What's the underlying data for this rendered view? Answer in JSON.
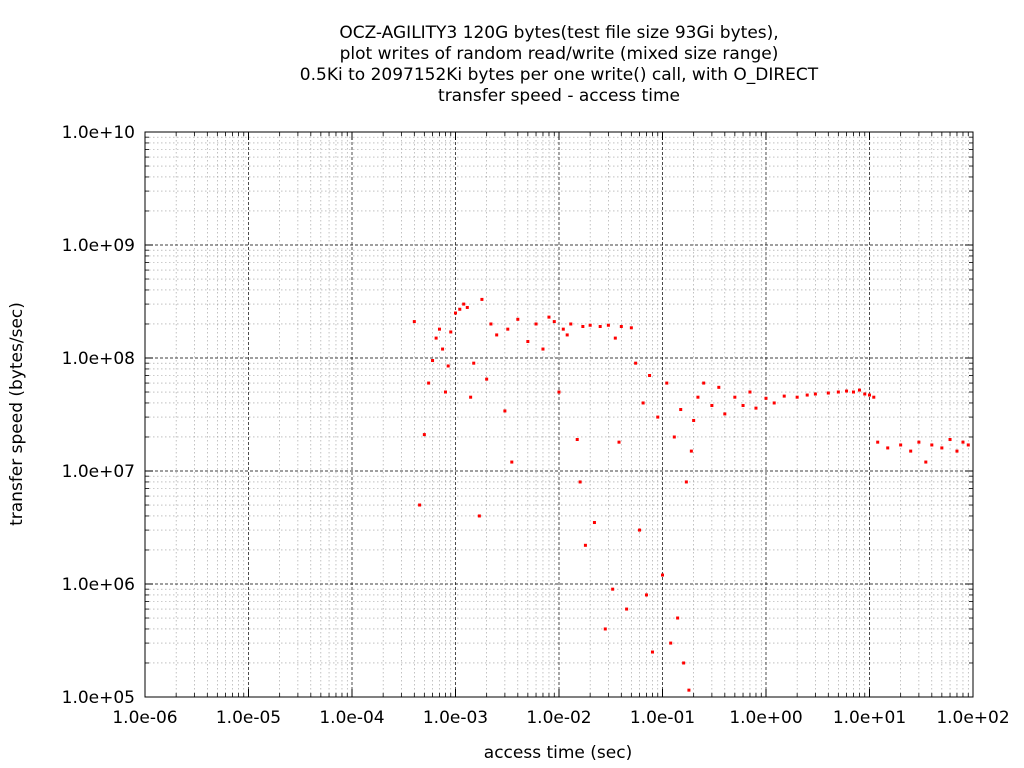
{
  "chart_data": {
    "type": "scatter",
    "title_lines": [
      "OCZ-AGILITY3 120G bytes(test file size 93Gi bytes),",
      "plot writes of random read/write (mixed size range)",
      "0.5Ki to 2097152Ki bytes per one write() call, with O_DIRECT",
      "transfer speed - access time"
    ],
    "xlabel": "access time (sec)",
    "ylabel": "transfer speed (bytes/sec)",
    "x_scale": "log",
    "y_scale": "log",
    "xlim": [
      1e-06,
      100
    ],
    "ylim": [
      100000,
      10000000000
    ],
    "x_ticks": [
      {
        "value": 1e-06,
        "label": "1.0e-06"
      },
      {
        "value": 1e-05,
        "label": "1.0e-05"
      },
      {
        "value": 0.0001,
        "label": "1.0e-04"
      },
      {
        "value": 0.001,
        "label": "1.0e-03"
      },
      {
        "value": 0.01,
        "label": "1.0e-02"
      },
      {
        "value": 0.1,
        "label": "1.0e-01"
      },
      {
        "value": 1,
        "label": "1.0e+00"
      },
      {
        "value": 10,
        "label": "1.0e+01"
      },
      {
        "value": 100,
        "label": "1.0e+02"
      }
    ],
    "y_ticks": [
      {
        "value": 100000,
        "label": "1.0e+05"
      },
      {
        "value": 1000000,
        "label": "1.0e+06"
      },
      {
        "value": 10000000,
        "label": "1.0e+07"
      },
      {
        "value": 100000000,
        "label": "1.0e+08"
      },
      {
        "value": 1000000000,
        "label": "1.0e+09"
      },
      {
        "value": 10000000000,
        "label": "1.0e+10"
      }
    ],
    "grid": true,
    "grid_minor": true,
    "legend": "none",
    "series": [
      {
        "color": "#ff0000",
        "points": [
          [
            0.0004,
            210000000
          ],
          [
            0.00045,
            5000000
          ],
          [
            0.0005,
            21000000
          ],
          [
            0.00055,
            60000000
          ],
          [
            0.0006,
            95000000
          ],
          [
            0.00065,
            150000000
          ],
          [
            0.0007,
            180000000
          ],
          [
            0.00075,
            120000000
          ],
          [
            0.0008,
            50000000
          ],
          [
            0.00085,
            85000000
          ],
          [
            0.0009,
            170000000
          ],
          [
            0.001,
            250000000
          ],
          [
            0.0011,
            270000000
          ],
          [
            0.0012,
            300000000
          ],
          [
            0.0013,
            280000000
          ],
          [
            0.0014,
            45000000
          ],
          [
            0.0015,
            90000000
          ],
          [
            0.0017,
            4000000
          ],
          [
            0.0018,
            330000000
          ],
          [
            0.002,
            65000000
          ],
          [
            0.0022,
            200000000
          ],
          [
            0.0025,
            160000000
          ],
          [
            0.003,
            34000000
          ],
          [
            0.0032,
            180000000
          ],
          [
            0.0035,
            12000000
          ],
          [
            0.004,
            220000000
          ],
          [
            0.005,
            140000000
          ],
          [
            0.006,
            200000000
          ],
          [
            0.007,
            120000000
          ],
          [
            0.008,
            230000000
          ],
          [
            0.009,
            210000000
          ],
          [
            0.01,
            50000000
          ],
          [
            0.011,
            180000000
          ],
          [
            0.012,
            160000000
          ],
          [
            0.013,
            200000000
          ],
          [
            0.015,
            19000000
          ],
          [
            0.016,
            8000000
          ],
          [
            0.017,
            190000000
          ],
          [
            0.018,
            2200000
          ],
          [
            0.02,
            195000000
          ],
          [
            0.022,
            3500000
          ],
          [
            0.025,
            190000000
          ],
          [
            0.028,
            400000
          ],
          [
            0.03,
            195000000
          ],
          [
            0.033,
            900000
          ],
          [
            0.035,
            150000000
          ],
          [
            0.038,
            18000000
          ],
          [
            0.04,
            190000000
          ],
          [
            0.045,
            600000
          ],
          [
            0.05,
            185000000
          ],
          [
            0.055,
            90000000
          ],
          [
            0.06,
            3000000
          ],
          [
            0.065,
            40000000
          ],
          [
            0.07,
            800000
          ],
          [
            0.075,
            70000000
          ],
          [
            0.08,
            250000
          ],
          [
            0.09,
            30000000
          ],
          [
            0.1,
            1200000
          ],
          [
            0.11,
            60000000
          ],
          [
            0.12,
            300000
          ],
          [
            0.13,
            20000000
          ],
          [
            0.14,
            500000
          ],
          [
            0.15,
            35000000
          ],
          [
            0.16,
            200000
          ],
          [
            0.17,
            8000000
          ],
          [
            0.18,
            115000
          ],
          [
            0.19,
            15000000
          ],
          [
            0.2,
            28000000
          ],
          [
            0.22,
            45000000
          ],
          [
            0.25,
            60000000
          ],
          [
            0.3,
            38000000
          ],
          [
            0.35,
            55000000
          ],
          [
            0.4,
            32000000
          ],
          [
            0.5,
            45000000
          ],
          [
            0.6,
            38000000
          ],
          [
            0.7,
            50000000
          ],
          [
            0.8,
            36000000
          ],
          [
            1,
            44000000
          ],
          [
            1.2,
            40000000
          ],
          [
            1.5,
            46000000
          ],
          [
            2,
            45000000
          ],
          [
            2.5,
            47000000
          ],
          [
            3,
            48000000
          ],
          [
            4,
            49000000
          ],
          [
            5,
            50000000
          ],
          [
            6,
            51000000
          ],
          [
            7,
            50000000
          ],
          [
            8,
            52000000
          ],
          [
            9,
            48000000
          ],
          [
            10,
            47000000
          ],
          [
            11,
            45000000
          ],
          [
            12,
            18000000
          ],
          [
            15,
            16000000
          ],
          [
            20,
            17000000
          ],
          [
            25,
            15000000
          ],
          [
            30,
            18000000
          ],
          [
            35,
            12000000
          ],
          [
            40,
            17000000
          ],
          [
            50,
            16000000
          ],
          [
            60,
            19000000
          ],
          [
            70,
            15000000
          ],
          [
            80,
            18000000
          ],
          [
            90,
            17000000
          ]
        ]
      }
    ]
  }
}
